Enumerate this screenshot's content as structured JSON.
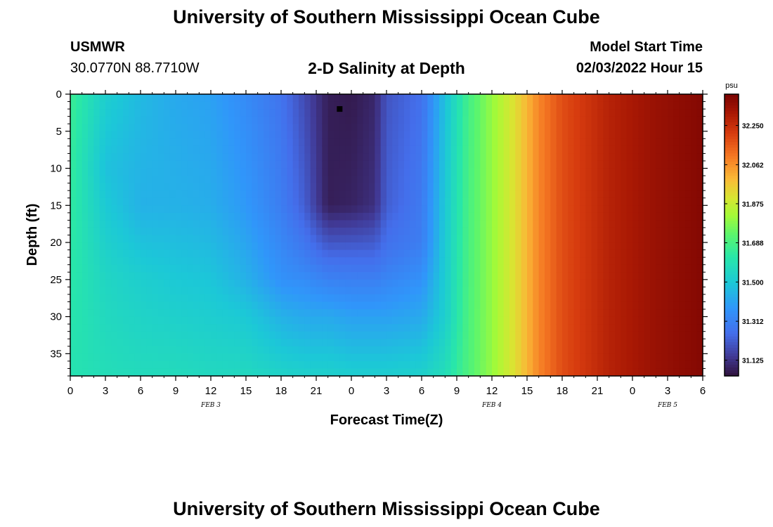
{
  "page": {
    "title": "University of Southern Mississippi Ocean Cube",
    "title_repeat": "University of Southern Mississippi Ocean Cube",
    "station_id": "USMWR",
    "station_coords": "30.0770N  88.7710W",
    "subtitle": "2-D Salinity at Depth",
    "model_start_label": "Model Start Time",
    "model_start_value": "02/03/2022 Hour 15"
  },
  "chart_data": {
    "type": "heatmap",
    "title": "2-D Salinity at Depth",
    "xlabel": "Forecast Time(Z)",
    "ylabel": "Depth (ft)",
    "x_unit": "hours from 00Z FEB 3",
    "xlim": [
      0,
      54
    ],
    "ylim": [
      0,
      38
    ],
    "y_inverted": true,
    "x_ticks": [
      {
        "value": 0,
        "label": "0"
      },
      {
        "value": 3,
        "label": "3"
      },
      {
        "value": 6,
        "label": "6"
      },
      {
        "value": 9,
        "label": "9"
      },
      {
        "value": 12,
        "label": "12"
      },
      {
        "value": 15,
        "label": "15"
      },
      {
        "value": 18,
        "label": "18"
      },
      {
        "value": 21,
        "label": "21"
      },
      {
        "value": 24,
        "label": "0"
      },
      {
        "value": 27,
        "label": "3"
      },
      {
        "value": 30,
        "label": "6"
      },
      {
        "value": 33,
        "label": "9"
      },
      {
        "value": 36,
        "label": "12"
      },
      {
        "value": 39,
        "label": "15"
      },
      {
        "value": 42,
        "label": "18"
      },
      {
        "value": 45,
        "label": "21"
      },
      {
        "value": 48,
        "label": "0"
      },
      {
        "value": 51,
        "label": "3"
      },
      {
        "value": 54,
        "label": "6"
      }
    ],
    "y_ticks": [
      0,
      5,
      10,
      15,
      20,
      25,
      30,
      35
    ],
    "date_labels": [
      {
        "value": 12,
        "label": "FEB 3"
      },
      {
        "value": 36,
        "label": "FEB 4"
      },
      {
        "value": 51,
        "label": "FEB 5"
      }
    ],
    "colorbar": {
      "unit": "psu",
      "min": 31.05,
      "max": 32.4,
      "ticks": [
        32.25,
        32.062,
        31.875,
        31.688,
        31.5,
        31.312,
        31.125
      ],
      "tick_labels": [
        "32.250",
        "32.062",
        "31.875",
        "31.688",
        "31.500",
        "31.312",
        "31.125"
      ]
    },
    "profiles": [
      {
        "t": 0,
        "s": [
          [
            0,
            31.66
          ],
          [
            38,
            31.6
          ]
        ]
      },
      {
        "t": 3,
        "s": [
          [
            0,
            31.52
          ],
          [
            10,
            31.48
          ],
          [
            25,
            31.55
          ],
          [
            38,
            31.58
          ]
        ]
      },
      {
        "t": 6,
        "s": [
          [
            0,
            31.46
          ],
          [
            15,
            31.44
          ],
          [
            25,
            31.52
          ],
          [
            38,
            31.57
          ]
        ]
      },
      {
        "t": 9,
        "s": [
          [
            0,
            31.42
          ],
          [
            15,
            31.44
          ],
          [
            25,
            31.5
          ],
          [
            38,
            31.57
          ]
        ]
      },
      {
        "t": 12,
        "s": [
          [
            0,
            31.4
          ],
          [
            15,
            31.43
          ],
          [
            25,
            31.49
          ],
          [
            38,
            31.56
          ]
        ]
      },
      {
        "t": 15,
        "s": [
          [
            0,
            31.34
          ],
          [
            15,
            31.38
          ],
          [
            25,
            31.44
          ],
          [
            30,
            31.5
          ],
          [
            38,
            31.56
          ]
        ]
      },
      {
        "t": 18,
        "s": [
          [
            0,
            31.27
          ],
          [
            15,
            31.3
          ],
          [
            25,
            31.36
          ],
          [
            30,
            31.44
          ],
          [
            38,
            31.54
          ]
        ]
      },
      {
        "t": 20,
        "s": [
          [
            0,
            31.18
          ],
          [
            15,
            31.22
          ],
          [
            22,
            31.3
          ],
          [
            30,
            31.42
          ],
          [
            38,
            31.53
          ]
        ]
      },
      {
        "t": 22,
        "s": [
          [
            0,
            31.08
          ],
          [
            15,
            31.08
          ],
          [
            22,
            31.25
          ],
          [
            30,
            31.42
          ],
          [
            38,
            31.53
          ]
        ]
      },
      {
        "t": 24,
        "s": [
          [
            0,
            31.07
          ],
          [
            15,
            31.09
          ],
          [
            22,
            31.25
          ],
          [
            30,
            31.4
          ],
          [
            38,
            31.52
          ]
        ]
      },
      {
        "t": 26,
        "s": [
          [
            0,
            31.1
          ],
          [
            15,
            31.12
          ],
          [
            22,
            31.25
          ],
          [
            30,
            31.4
          ],
          [
            38,
            31.52
          ]
        ]
      },
      {
        "t": 27,
        "s": [
          [
            0,
            31.2
          ],
          [
            15,
            31.22
          ],
          [
            22,
            31.28
          ],
          [
            30,
            31.4
          ],
          [
            38,
            31.52
          ]
        ]
      },
      {
        "t": 30,
        "s": [
          [
            0,
            31.26
          ],
          [
            20,
            31.3
          ],
          [
            30,
            31.42
          ],
          [
            38,
            31.53
          ]
        ]
      },
      {
        "t": 32,
        "s": [
          [
            0,
            31.48
          ],
          [
            30,
            31.52
          ],
          [
            38,
            31.58
          ]
        ]
      },
      {
        "t": 34,
        "s": [
          [
            0,
            31.68
          ],
          [
            38,
            31.7
          ]
        ]
      },
      {
        "t": 36,
        "s": [
          [
            0,
            31.8
          ],
          [
            38,
            31.8
          ]
        ]
      },
      {
        "t": 38,
        "s": [
          [
            0,
            31.92
          ],
          [
            38,
            31.92
          ]
        ]
      },
      {
        "t": 40,
        "s": [
          [
            0,
            32.08
          ],
          [
            38,
            32.08
          ]
        ]
      },
      {
        "t": 42,
        "s": [
          [
            0,
            32.18
          ],
          [
            38,
            32.18
          ]
        ]
      },
      {
        "t": 46,
        "s": [
          [
            0,
            32.28
          ],
          [
            38,
            32.28
          ]
        ]
      },
      {
        "t": 50,
        "s": [
          [
            0,
            32.34
          ],
          [
            38,
            32.34
          ]
        ]
      },
      {
        "t": 54,
        "s": [
          [
            0,
            32.38
          ],
          [
            38,
            32.38
          ]
        ]
      }
    ],
    "marker": {
      "t": 23,
      "depth": 2
    }
  }
}
